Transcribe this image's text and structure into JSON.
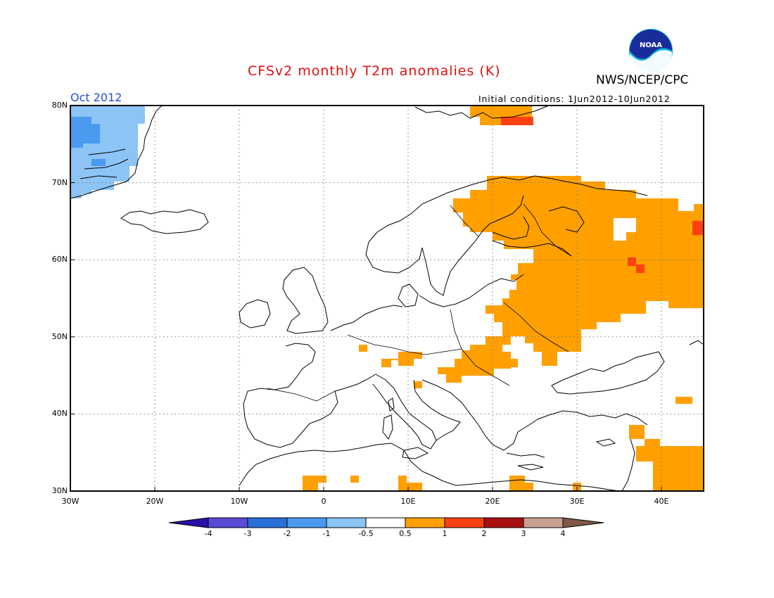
{
  "title": "CFSv2 monthly T2m anomalies (K)",
  "organization": "NWS/NCEP/CPC",
  "logo_text": "NOAA",
  "month": "Oct 2012",
  "initial_conditions": "Initial conditions: 1Jun2012-10Jun2012",
  "map": {
    "lat_range": [
      30,
      80
    ],
    "lon_range": [
      -30,
      45
    ],
    "lat_ticks": [
      {
        "value": 80,
        "label": "80N"
      },
      {
        "value": 70,
        "label": "70N"
      },
      {
        "value": 60,
        "label": "60N"
      },
      {
        "value": 50,
        "label": "50N"
      },
      {
        "value": 40,
        "label": "40N"
      },
      {
        "value": 30,
        "label": "30N"
      }
    ],
    "lon_ticks": [
      {
        "value": -30,
        "label": "30W"
      },
      {
        "value": -20,
        "label": "20W"
      },
      {
        "value": -10,
        "label": "10W"
      },
      {
        "value": 0,
        "label": "0"
      },
      {
        "value": 10,
        "label": "10E"
      },
      {
        "value": 20,
        "label": "20E"
      },
      {
        "value": 30,
        "label": "30E"
      },
      {
        "value": 40,
        "label": "40E"
      }
    ],
    "grid_lines": "dotted"
  },
  "colorbar": {
    "labels": [
      "-4",
      "-3",
      "-2",
      "-1",
      "-0.5",
      "0.5",
      "1",
      "2",
      "3",
      "4"
    ],
    "colors": [
      "#2a10a8",
      "#5a4ad8",
      "#2a6fd8",
      "#4a9af0",
      "#8cc4f6",
      "#ffffff",
      "#ffa000",
      "#ff4010",
      "#a81010",
      "#c8a090",
      "#805848"
    ]
  }
}
